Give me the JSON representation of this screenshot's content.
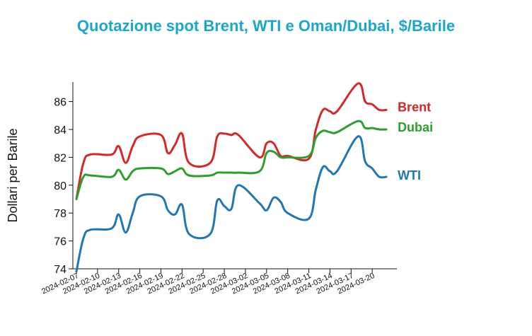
{
  "chart_data": {
    "type": "line",
    "title": "Quotazione spot Brent, WTI e Oman/Dubai, $/Barile",
    "xlabel": "",
    "ylabel": "Dollari per Barile",
    "ylim": [
      74,
      87.4
    ],
    "yticks": [
      74,
      76,
      78,
      80,
      82,
      84,
      86
    ],
    "xticks": [
      "2024-02-07",
      "2024-02-10",
      "2024-02-13",
      "2024-02-16",
      "2024-02-19",
      "2024-02-22",
      "2024-02-25",
      "2024-02-28",
      "2024-03-02",
      "2024-03-05",
      "2024-03-08",
      "2024-03-11",
      "2024-03-14",
      "2024-03-17",
      "2024-03-20"
    ],
    "x": [
      "2024-02-07",
      "2024-02-08",
      "2024-02-09",
      "2024-02-12",
      "2024-02-13",
      "2024-02-14",
      "2024-02-15",
      "2024-02-16",
      "2024-02-19",
      "2024-02-20",
      "2024-02-21",
      "2024-02-22",
      "2024-02-23",
      "2024-02-26",
      "2024-02-27",
      "2024-02-28",
      "2024-02-29",
      "2024-03-01",
      "2024-03-04",
      "2024-03-05",
      "2024-03-06",
      "2024-03-07",
      "2024-03-08",
      "2024-03-11",
      "2024-03-12",
      "2024-03-13",
      "2024-03-14",
      "2024-03-15",
      "2024-03-18",
      "2024-03-19",
      "2024-03-20",
      "2024-03-21",
      "2024-03-22"
    ],
    "series": [
      {
        "name": "Brent",
        "color": "#d62728",
        "values": [
          79.0,
          81.6,
          82.2,
          82.2,
          82.8,
          81.6,
          82.8,
          83.5,
          83.6,
          82.3,
          82.9,
          83.7,
          81.6,
          81.6,
          83.5,
          83.7,
          83.6,
          83.6,
          82.0,
          83.0,
          83.0,
          82.1,
          82.1,
          81.9,
          84.0,
          85.4,
          85.3,
          85.3,
          87.3,
          86.0,
          85.8,
          85.4,
          85.4
        ]
      },
      {
        "name": "Dubai",
        "color": "#2ca02c",
        "values": [
          79.0,
          80.6,
          80.7,
          80.6,
          81.1,
          80.4,
          81.0,
          81.2,
          81.2,
          80.8,
          81.0,
          81.2,
          80.7,
          80.7,
          80.9,
          80.9,
          80.9,
          80.9,
          81.0,
          82.3,
          82.4,
          82.0,
          82.0,
          82.1,
          83.4,
          83.9,
          83.8,
          83.8,
          84.6,
          84.1,
          84.1,
          84.0,
          84.0
        ]
      },
      {
        "name": "WTI",
        "color": "#1f77b4",
        "values": [
          73.8,
          76.2,
          76.8,
          76.9,
          77.9,
          76.6,
          78.0,
          79.2,
          79.2,
          78.2,
          77.9,
          78.6,
          76.5,
          76.5,
          78.9,
          78.5,
          78.3,
          80.0,
          78.7,
          78.2,
          79.1,
          78.8,
          78.0,
          77.6,
          79.7,
          81.3,
          81.0,
          81.0,
          83.5,
          81.7,
          81.2,
          80.6,
          80.6
        ]
      }
    ],
    "grid": false,
    "legend": "inline-right"
  }
}
